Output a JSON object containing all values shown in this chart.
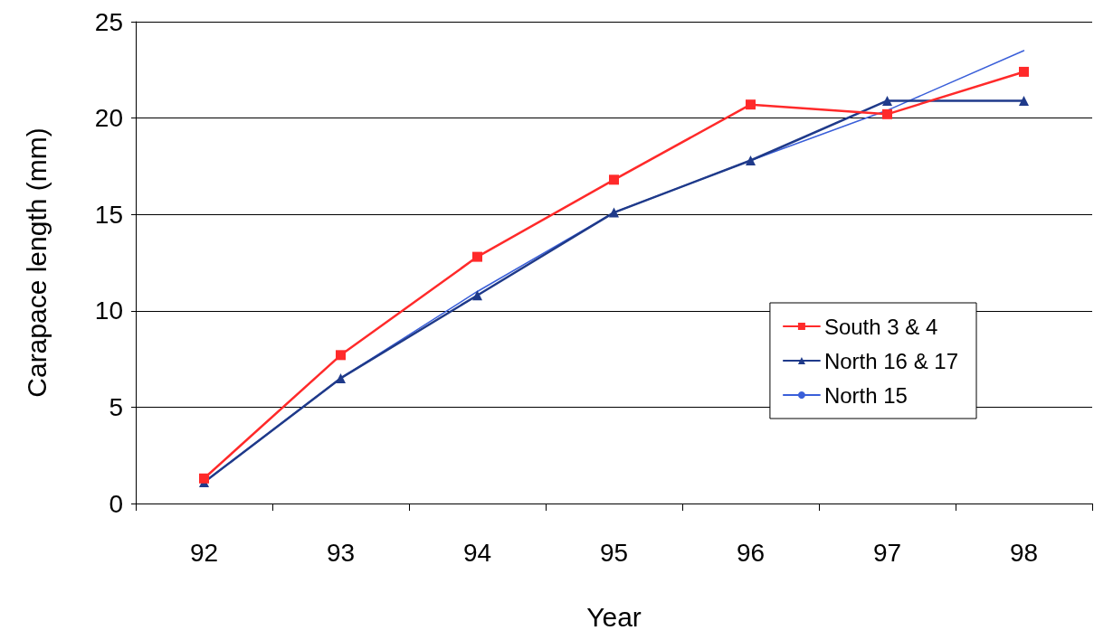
{
  "chart_data": {
    "type": "line",
    "xlabel": "Year",
    "ylabel": "Carapace length (mm)",
    "categories": [
      "92",
      "93",
      "94",
      "95",
      "96",
      "97",
      "98"
    ],
    "series": [
      {
        "name": "South 3 & 4",
        "color": "#ff2a2a",
        "marker": "square",
        "values": [
          1.3,
          7.7,
          12.8,
          16.8,
          20.7,
          20.2,
          22.4
        ]
      },
      {
        "name": "North 16 & 17",
        "color": "#1f3a8a",
        "marker": "triangle",
        "values": [
          1.1,
          6.5,
          10.8,
          15.1,
          17.8,
          20.9,
          20.9
        ]
      },
      {
        "name": "North 15",
        "color": "#3a5fd9",
        "marker": "none",
        "values": [
          1.1,
          6.5,
          11.0,
          15.1,
          17.8,
          20.4,
          23.5
        ]
      }
    ],
    "ylim": [
      0,
      25
    ],
    "yticks": [
      0,
      5,
      10,
      15,
      20,
      25
    ],
    "grid": "y",
    "legend": "right"
  }
}
